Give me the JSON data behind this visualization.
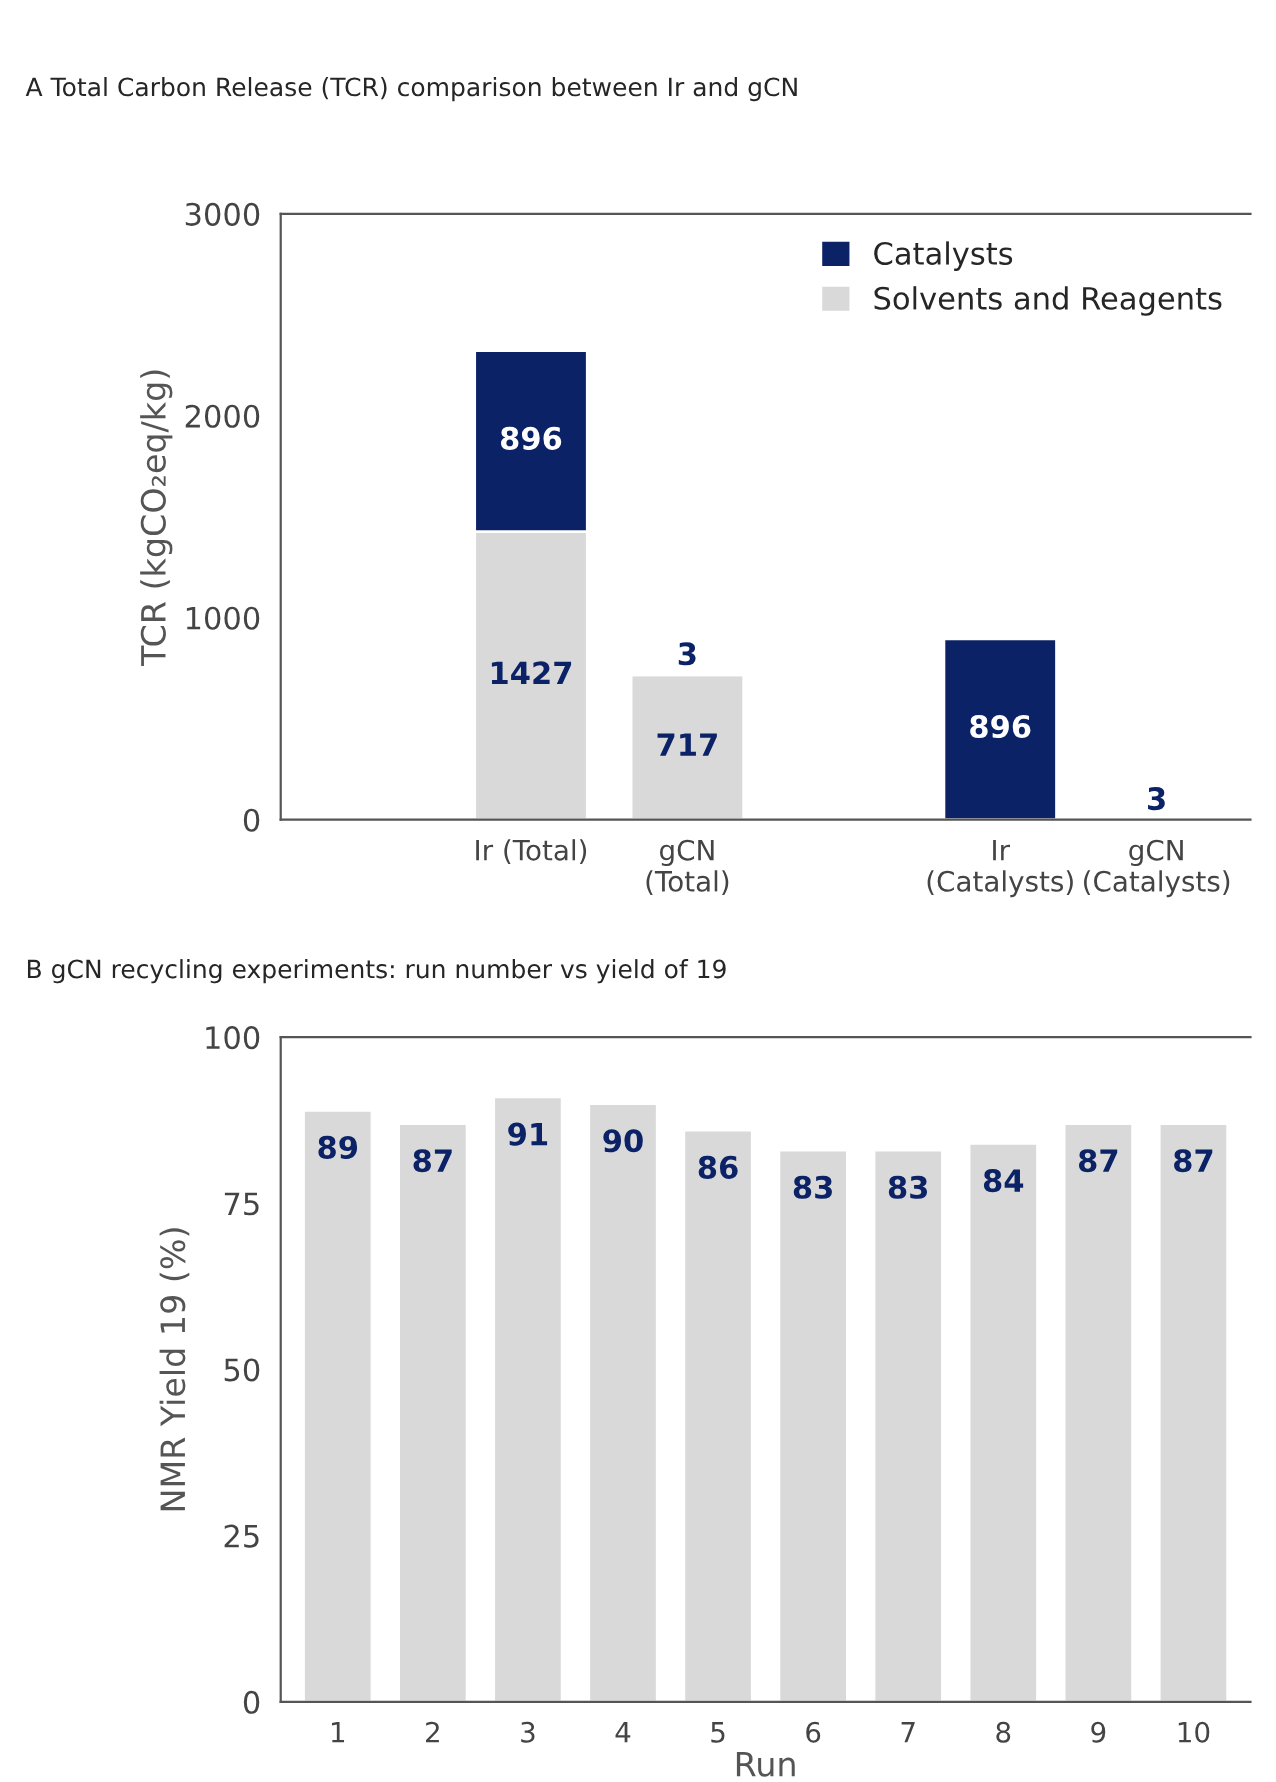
{
  "chart_data": [
    {
      "type": "bar",
      "title": "A Total Carbon Release (TCR) comparison between Ir and gCN",
      "ylabel": "TCR (kgCO₂eq/kg)",
      "categories": [
        null,
        "Ir (Total)",
        "gCN\n(Total)",
        null,
        "Ir\n(Catalysts)",
        "gCN\n(Catalysts)"
      ],
      "stacked": true,
      "series": [
        {
          "name": "Solvents and Reagents",
          "color": "#d9d9d9",
          "values": [
            null,
            1427,
            717,
            null,
            null,
            null
          ]
        },
        {
          "name": "Catalysts",
          "color": "#0c2266",
          "values": [
            null,
            896,
            3,
            null,
            896,
            3
          ]
        }
      ],
      "ylim": [
        0,
        3000
      ],
      "yticks": [
        0,
        1000,
        2000,
        3000
      ],
      "data_labels": true,
      "legend": "top right",
      "grid": false
    },
    {
      "type": "bar",
      "title": "B gCN recycling experiments: run number vs yield of 19",
      "xlabel": "Run",
      "ylabel": "NMR Yield 19 (%)",
      "categories": [
        "1",
        "2",
        "3",
        "4",
        "5",
        "6",
        "7",
        "8",
        "9",
        "10"
      ],
      "series": [
        {
          "color": "#d9d9d9",
          "values": [
            89,
            87,
            91,
            90,
            86,
            83,
            83,
            84,
            87,
            87
          ]
        }
      ],
      "ylim": [
        0,
        100
      ],
      "yticks": [
        0,
        25,
        50,
        75,
        100
      ],
      "data_labels": true,
      "grid": false
    }
  ]
}
